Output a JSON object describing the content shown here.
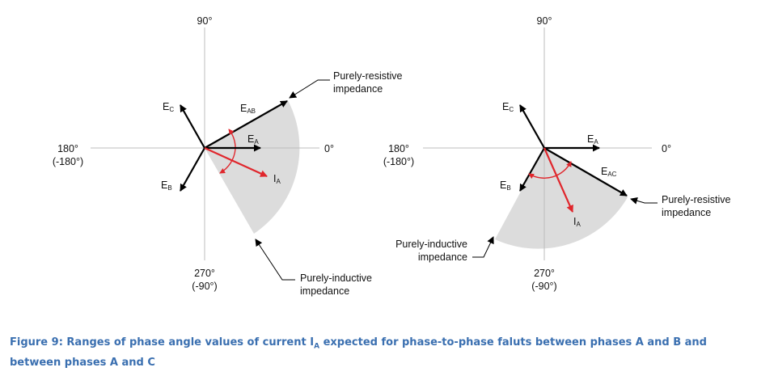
{
  "diagram_left": {
    "axis_top": "90°",
    "axis_left_1": "180°",
    "axis_left_2": "(-180°)",
    "axis_right": "0°",
    "axis_bottom_1": "270°",
    "axis_bottom_2": "(-90°)",
    "vec_ec": "E",
    "vec_ec_sub": "C",
    "vec_eab": "E",
    "vec_eab_sub": "AB",
    "vec_ea": "E",
    "vec_ea_sub": "A",
    "vec_eb": "E",
    "vec_eb_sub": "B",
    "vec_ia": "I",
    "vec_ia_sub": "A",
    "resistive_1": "Purely-resistive",
    "resistive_2": "impedance",
    "inductive_1": "Purely-inductive",
    "inductive_2": "impedance"
  },
  "diagram_right": {
    "axis_top": "90°",
    "axis_left_1": "180°",
    "axis_left_2": "(-180°)",
    "axis_right": "0°",
    "axis_bottom_1": "270°",
    "axis_bottom_2": "(-90°)",
    "vec_ec": "E",
    "vec_ec_sub": "C",
    "vec_ea": "E",
    "vec_ea_sub": "A",
    "vec_eac": "E",
    "vec_eac_sub": "AC",
    "vec_eb": "E",
    "vec_eb_sub": "B",
    "vec_ia": "I",
    "vec_ia_sub": "A",
    "resistive_1": "Purely-resistive",
    "resistive_2": "impedance",
    "inductive_1": "Purely-inductive",
    "inductive_2": "impedance"
  },
  "caption": {
    "part1": "Figure 9: Ranges of phase angle values of current I",
    "sub": "A",
    "part2": " expected for phase-to-phase faluts between phases A and B and between phases A and C"
  },
  "colors": {
    "vector": "#000000",
    "current": "#E0262C",
    "sector": "#DCDCDC",
    "axis": "#BDBDBD",
    "caption": "#3A6FB0"
  }
}
